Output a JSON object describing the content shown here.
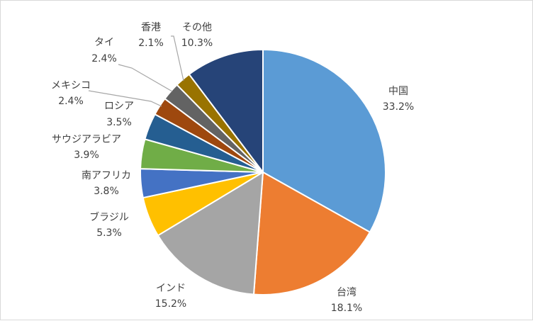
{
  "chart_data": {
    "type": "pie",
    "title": "",
    "start_angle_deg": 0,
    "direction": "clockwise",
    "slices": [
      {
        "name": "中国",
        "value": 33.2,
        "label": "33.2%",
        "color": "#5B9BD5"
      },
      {
        "name": "台湾",
        "value": 18.1,
        "label": "18.1%",
        "color": "#ED7D31"
      },
      {
        "name": "インド",
        "value": 15.2,
        "label": "15.2%",
        "color": "#A5A5A5"
      },
      {
        "name": "ブラジル",
        "value": 5.3,
        "label": "5.3%",
        "color": "#FFC000"
      },
      {
        "name": "南アフリカ",
        "value": 3.8,
        "label": "3.8%",
        "color": "#4472C4"
      },
      {
        "name": "サウジアラビア",
        "value": 3.9,
        "label": "3.9%",
        "color": "#70AD47"
      },
      {
        "name": "ロシア",
        "value": 3.5,
        "label": "3.5%",
        "color": "#255E91"
      },
      {
        "name": "メキシコ",
        "value": 2.4,
        "label": "2.4%",
        "color": "#9E480E"
      },
      {
        "name": "タイ",
        "value": 2.4,
        "label": "2.4%",
        "color": "#636363"
      },
      {
        "name": "香港",
        "value": 2.1,
        "label": "2.1%",
        "color": "#997300"
      },
      {
        "name": "その他",
        "value": 10.3,
        "label": "10.3%",
        "color": "#264478"
      }
    ],
    "legend": "none",
    "data_labels": "category-and-percent"
  }
}
